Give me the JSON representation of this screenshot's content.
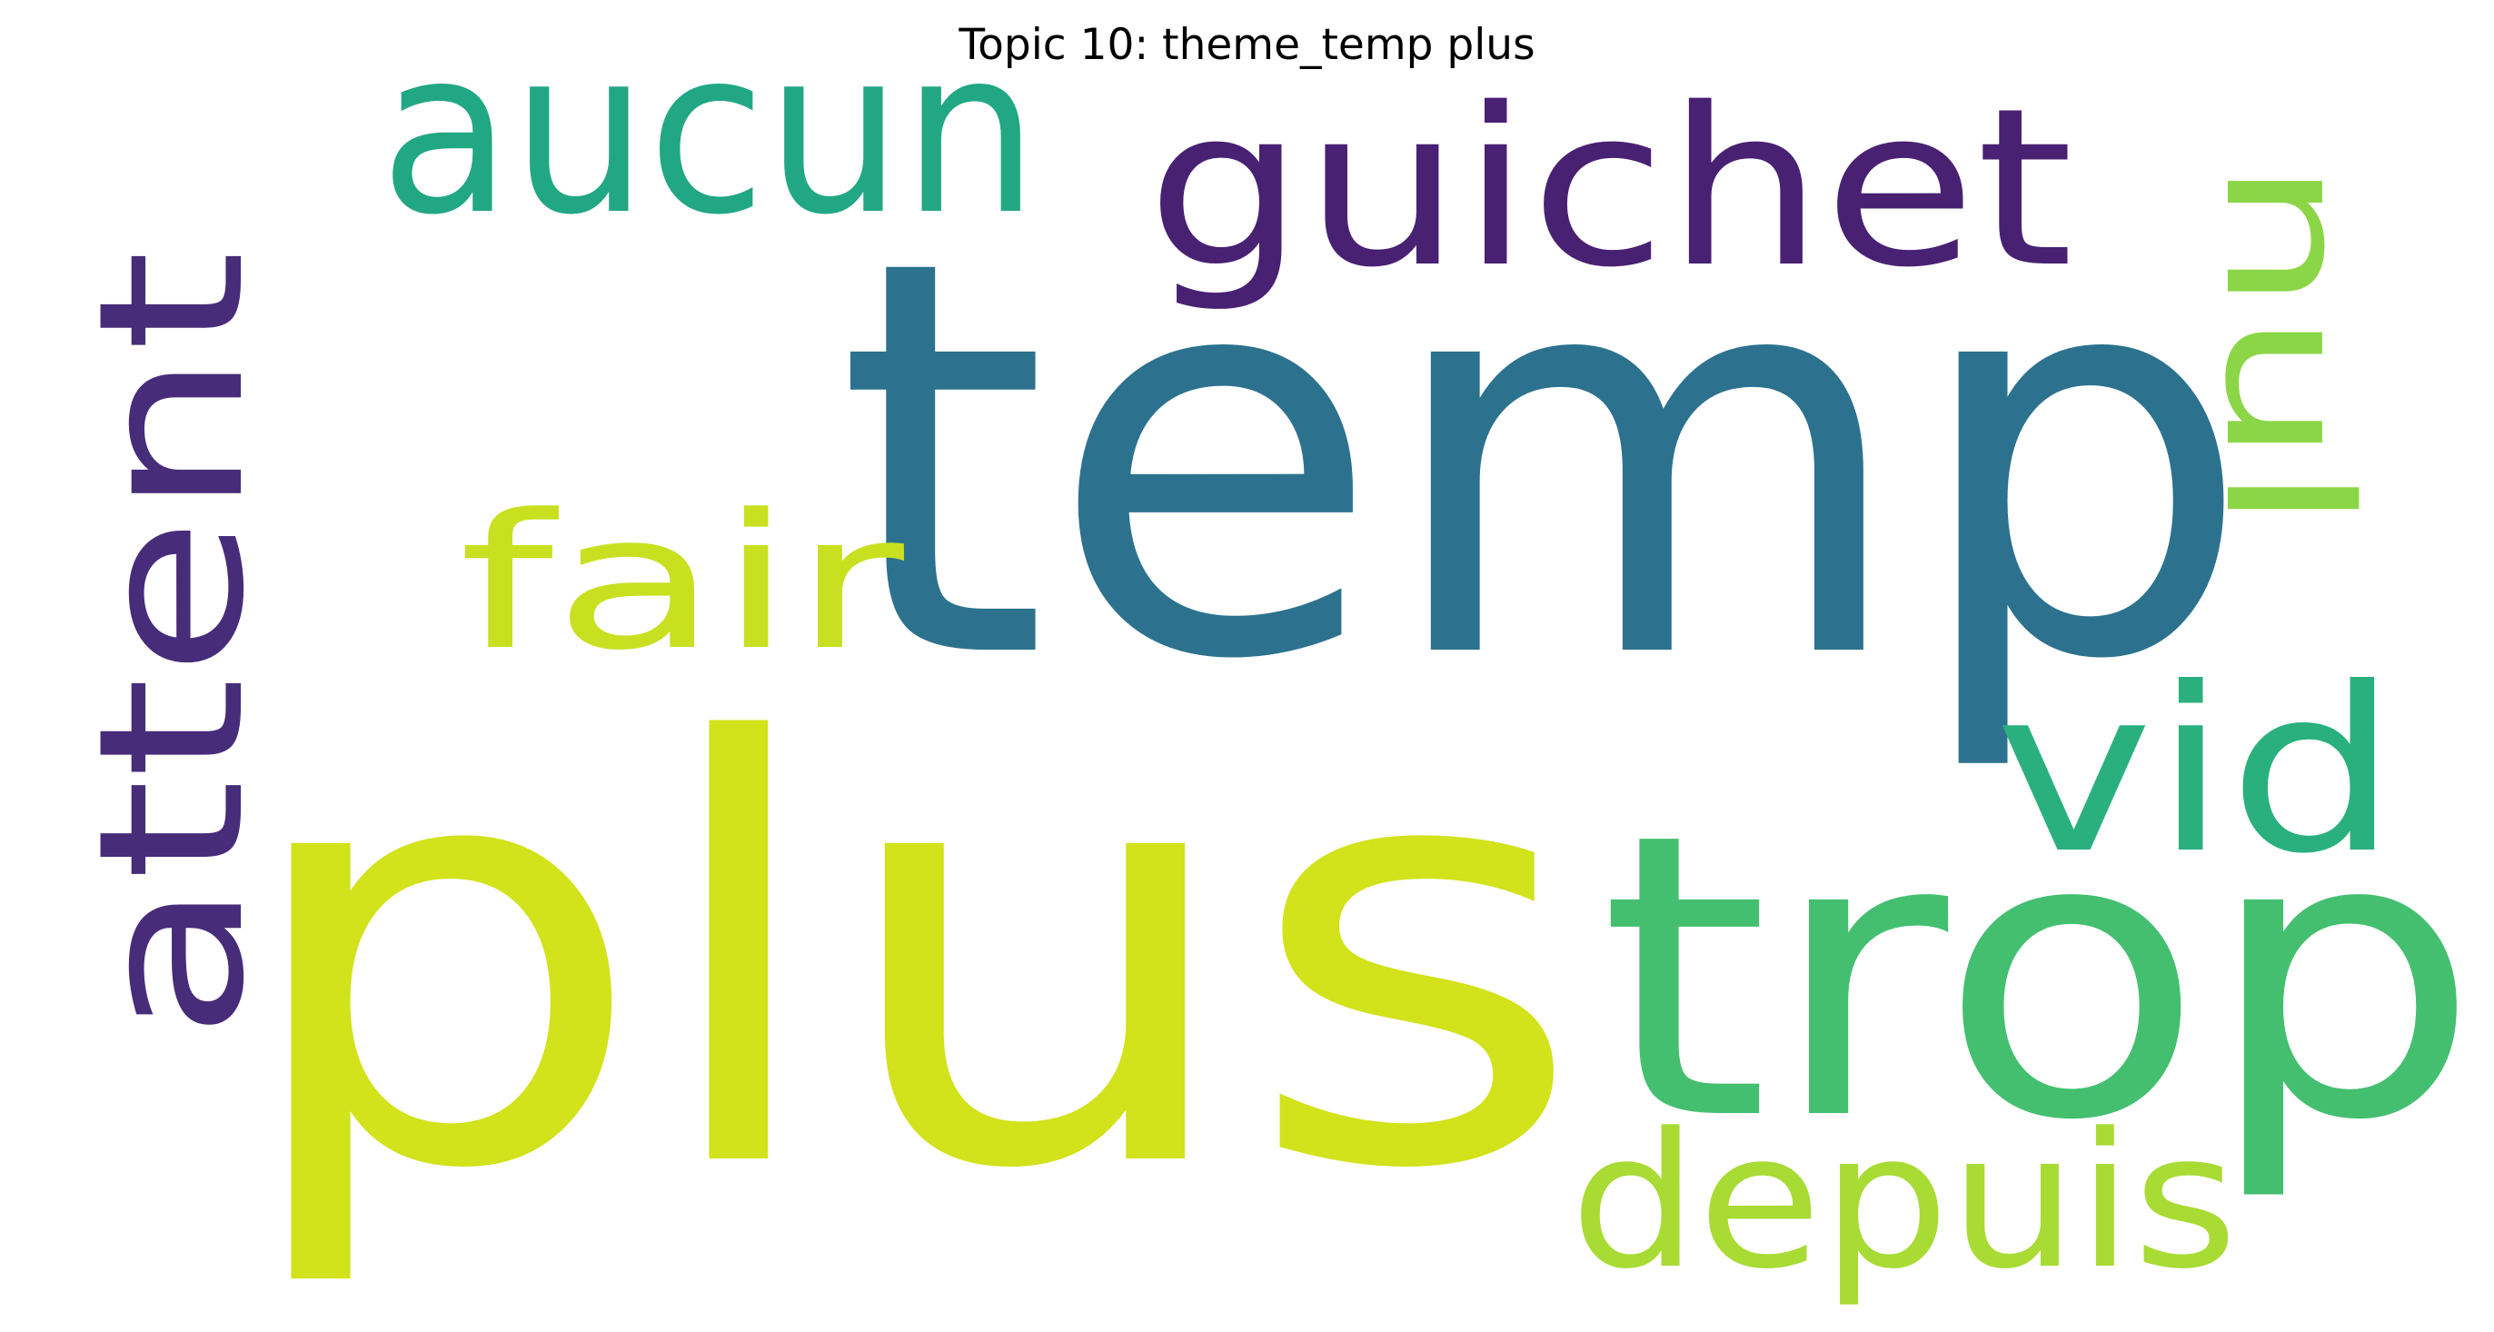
{
  "title": "Topic 10: theme_temp plus",
  "words": [
    {
      "key": "temp",
      "text": "temp",
      "color": "#2c728e",
      "orientation": "horizontal"
    },
    {
      "key": "plus",
      "text": "plus",
      "color": "#d2e21b",
      "orientation": "horizontal"
    },
    {
      "key": "trop",
      "text": "trop",
      "color": "#44bf70",
      "orientation": "horizontal"
    },
    {
      "key": "guichet",
      "text": "guichet",
      "color": "#482173",
      "orientation": "horizontal"
    },
    {
      "key": "aucun",
      "text": "aucun",
      "color": "#22a785",
      "orientation": "horizontal"
    },
    {
      "key": "attent",
      "text": "attent",
      "color": "#472c7a",
      "orientation": "vertical"
    },
    {
      "key": "fair",
      "text": "fair",
      "color": "#c8e020",
      "orientation": "horizontal"
    },
    {
      "key": "nul",
      "text": "nul",
      "color": "#8bd646",
      "orientation": "vertical"
    },
    {
      "key": "vid",
      "text": "vid",
      "color": "#2ab07f",
      "orientation": "horizontal"
    },
    {
      "key": "depuis",
      "text": "depuis",
      "color": "#a8db34",
      "orientation": "horizontal"
    }
  ]
}
